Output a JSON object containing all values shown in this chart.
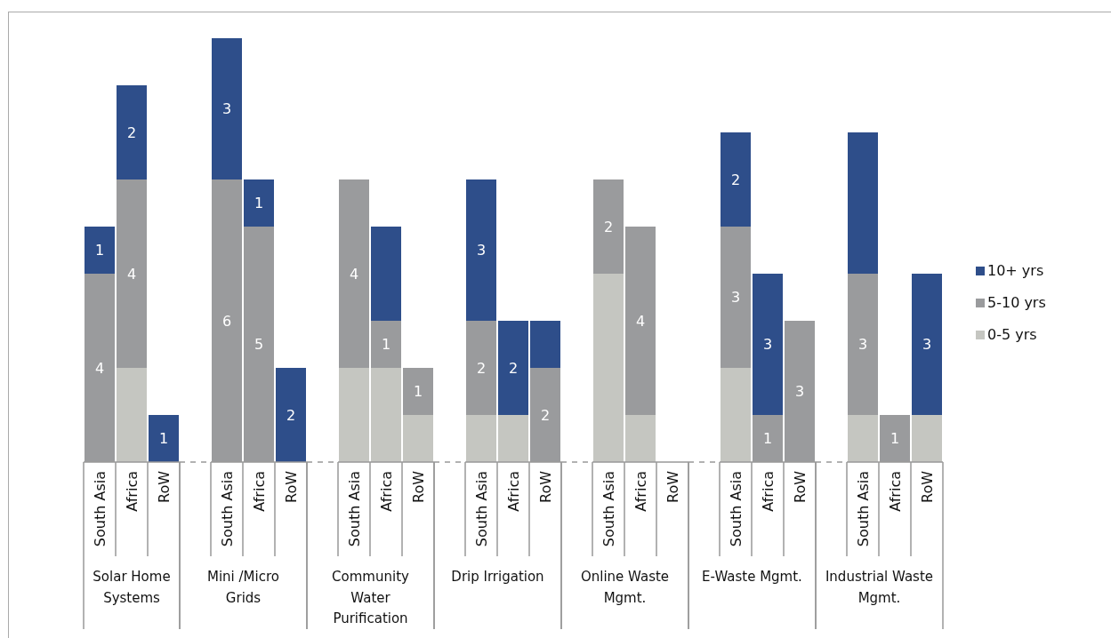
{
  "chart_data": {
    "type": "bar",
    "stacked": true,
    "data_labels": false,
    "legend": "right",
    "categories": [
      "South Asia",
      "Africa",
      "RoW",
      "South Asia",
      "Africa",
      "RoW",
      "South Asia",
      "Africa",
      "RoW",
      "South Asia",
      "Africa",
      "RoW",
      "South Asia",
      "Africa",
      "RoW",
      "South Asia",
      "Africa",
      "RoW",
      "South Asia",
      "Africa",
      "RoW"
    ],
    "annotations": [
      "Solar Home Systems",
      "Mini /Micro Grids",
      "Community Water Purification",
      "Drip Irrigation",
      "Online Waste Mgmt.",
      "E-Waste Mgmt.",
      "Industrial Waste Mgmt."
    ],
    "series": [
      {
        "name": "0-5 yrs",
        "color": "#c5c6c1",
        "values": [
          0,
          2,
          0,
          0,
          0,
          0,
          2,
          2,
          1,
          1,
          1,
          0,
          4,
          1,
          0,
          2,
          0,
          0,
          1,
          0,
          1
        ],
        "value_labels": [
          null,
          null,
          null,
          null,
          null,
          null,
          null,
          null,
          null,
          null,
          null,
          null,
          null,
          null,
          null,
          null,
          null,
          null,
          null,
          null,
          null
        ]
      },
      {
        "name": "5-10 yrs",
        "color": "#9a9b9d",
        "values": [
          4,
          4,
          0,
          6,
          5,
          0,
          4,
          1,
          1,
          2,
          0,
          2,
          2,
          4,
          0,
          3,
          1,
          3,
          3,
          1,
          0
        ],
        "value_labels": [
          "4",
          "4",
          null,
          "6",
          "5",
          null,
          "4",
          "1",
          "1",
          "2",
          null,
          "2",
          "2",
          "4",
          null,
          "3",
          "1",
          "3",
          "3",
          "1",
          null
        ]
      },
      {
        "name": "10+ yrs",
        "color": "#2e4e8a",
        "values": [
          1,
          2,
          1,
          3,
          1,
          2,
          0,
          2,
          0,
          3,
          2,
          1,
          0,
          0,
          0,
          2,
          3,
          0,
          3,
          0,
          3
        ],
        "value_labels": [
          "1",
          "2",
          "1",
          "3",
          "1",
          "2",
          null,
          null,
          null,
          "3",
          "2",
          null,
          null,
          null,
          null,
          "2",
          "3",
          null,
          null,
          null,
          "3"
        ]
      }
    ]
  }
}
